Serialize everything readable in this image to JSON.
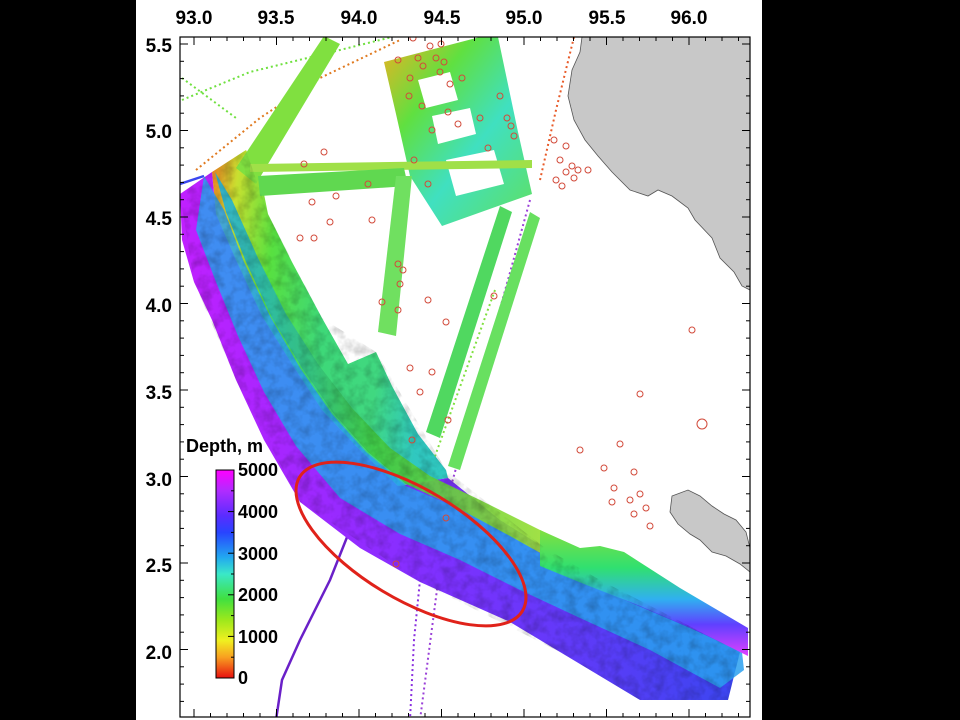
{
  "map": {
    "x_ticks": [
      "93.0",
      "93.5",
      "94.0",
      "94.5",
      "95.0",
      "95.5",
      "96.0"
    ],
    "y_ticks": [
      "5.5",
      "5.0",
      "4.5",
      "4.0",
      "3.5",
      "3.0",
      "2.5",
      "2.0"
    ]
  },
  "legend": {
    "title": "Depth, m",
    "labels": [
      "5000",
      "4000",
      "3000",
      "2000",
      "1000",
      "0"
    ]
  },
  "colors": {
    "land": "#c8c8c8",
    "highlight_ellipse": "#e0221a",
    "earthquake_circle": "#d24a3a",
    "track_line": "#6a20c8"
  },
  "chart_data": {
    "type": "map",
    "xlim": [
      92.9,
      96.3
    ],
    "ylim": [
      1.7,
      5.6
    ],
    "legend_placement": "bottom-left",
    "colorbar": {
      "label": "Depth, m",
      "range": [
        0,
        5000
      ],
      "ticks": [
        0,
        1000,
        2000,
        3000,
        4000,
        5000
      ]
    },
    "annotation": {
      "shape": "ellipse",
      "color": "red",
      "center": [
        94.3,
        2.67
      ]
    }
  }
}
